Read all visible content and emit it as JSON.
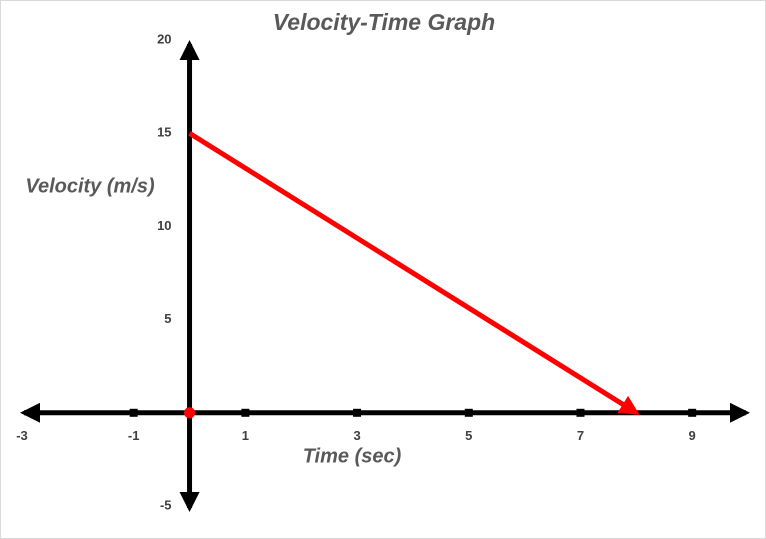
{
  "chart_data": {
    "type": "line",
    "title": "Velocity-Time Graph",
    "x_label": "Time (sec)",
    "y_label": "Velocity (m/s)",
    "x": [
      0,
      8
    ],
    "values": [
      15,
      0
    ],
    "color": "#ff0000",
    "xlim": [
      -3,
      10
    ],
    "xticks": [
      -3,
      -1,
      1,
      3,
      5,
      7,
      9
    ],
    "ylim": [
      -5,
      20
    ],
    "yticks": [
      -5,
      5,
      10,
      15,
      20
    ]
  }
}
